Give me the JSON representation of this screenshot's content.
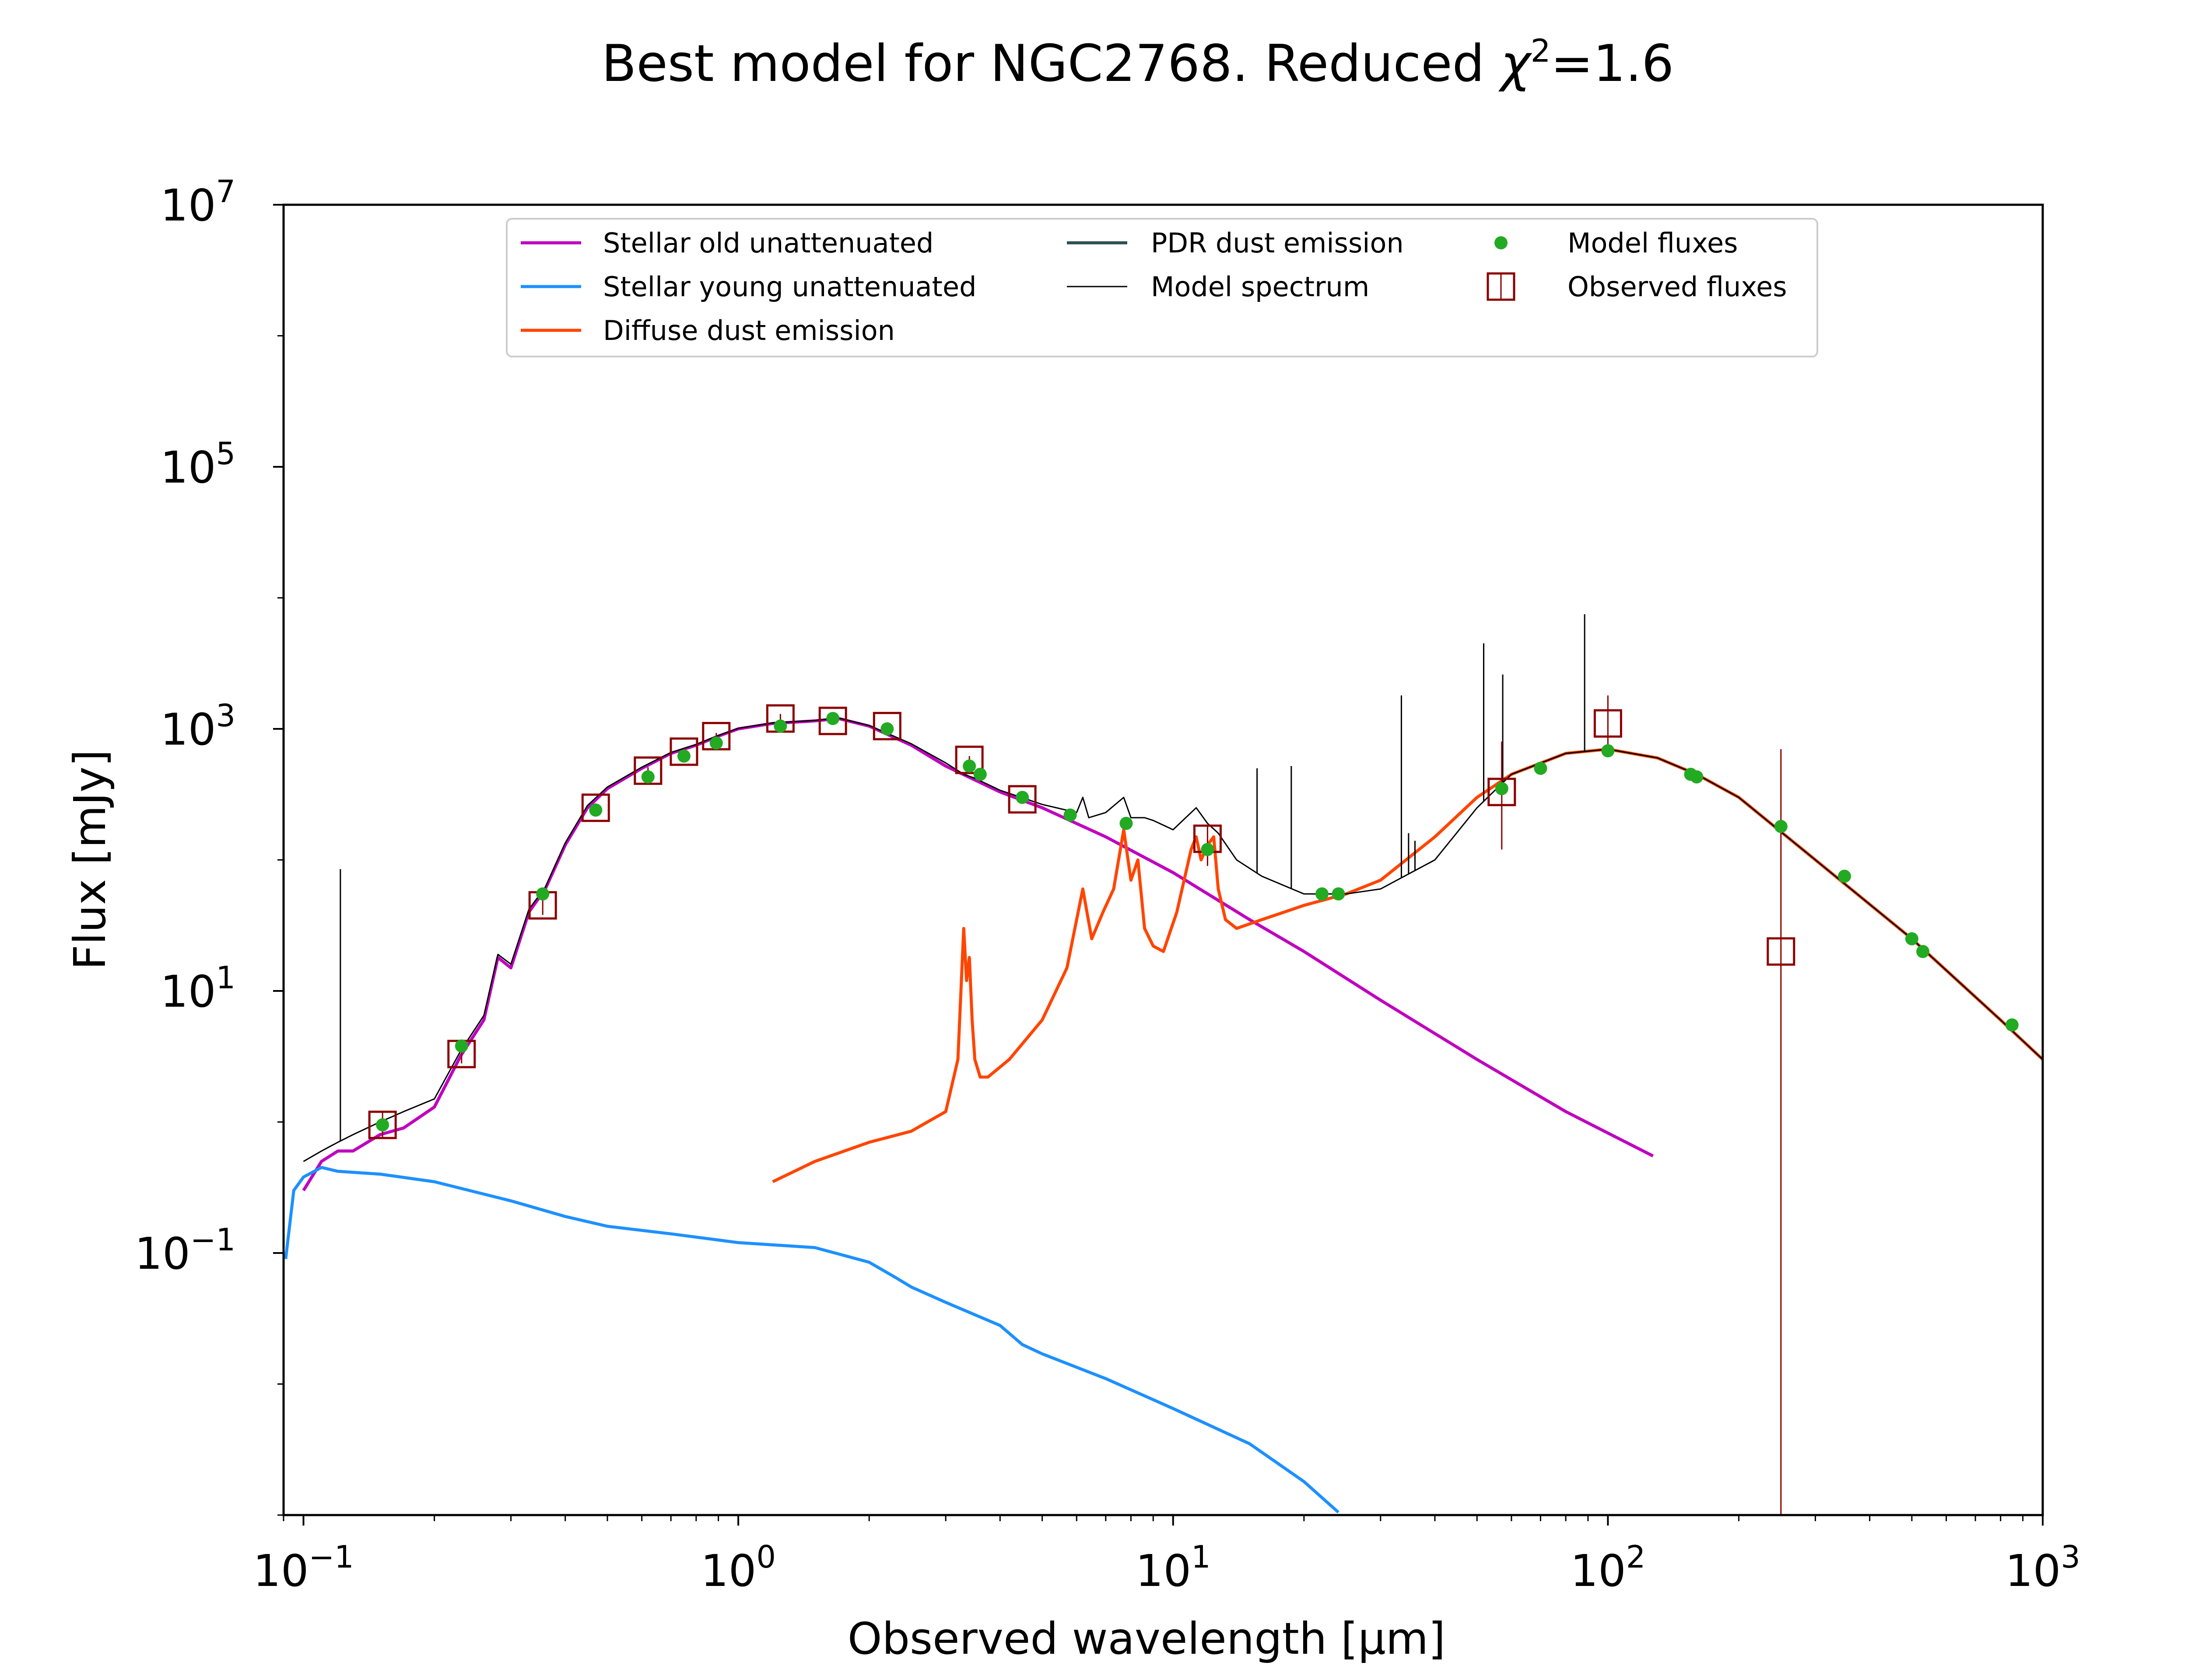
{
  "chart_data": {
    "type": "line",
    "title": "Best model for NGC2768. Reduced χ²=1.6",
    "title_parts": {
      "prefix": "Best model for NGC2768. Reduced ",
      "symbol": "χ",
      "superscript": "2",
      "suffix": "=1.6"
    },
    "xlabel": "Observed wavelength [μm]",
    "ylabel": "Flux [mJy]",
    "x_scale": "log",
    "y_scale": "log",
    "xlim": [
      0.09,
      1000
    ],
    "ylim": [
      0.001,
      10000000
    ],
    "x_ticks": [
      {
        "value": 0.1,
        "base": "10",
        "exp": "−1"
      },
      {
        "value": 1,
        "base": "10",
        "exp": "0"
      },
      {
        "value": 10,
        "base": "10",
        "exp": "1"
      },
      {
        "value": 100,
        "base": "10",
        "exp": "2"
      },
      {
        "value": 1000,
        "base": "10",
        "exp": "3"
      }
    ],
    "y_ticks": [
      {
        "value": 0.1,
        "base": "10",
        "exp": "−1"
      },
      {
        "value": 10,
        "base": "10",
        "exp": "1"
      },
      {
        "value": 1000,
        "base": "10",
        "exp": "3"
      },
      {
        "value": 100000,
        "base": "10",
        "exp": "5"
      },
      {
        "value": 10000000,
        "base": "10",
        "exp": "7"
      }
    ],
    "grid": false,
    "legend_position": "top-center",
    "legend": [
      {
        "label": "Stellar old unattenuated",
        "kind": "line",
        "color": "#bf00bf"
      },
      {
        "label": "Stellar young unattenuated",
        "kind": "line",
        "color": "#1e90ff"
      },
      {
        "label": "Diffuse dust emission",
        "kind": "line",
        "color": "#ff4500"
      },
      {
        "label": "PDR dust emission",
        "kind": "line",
        "color": "#2f4f4f"
      },
      {
        "label": "Model spectrum",
        "kind": "thin-line",
        "color": "#000000"
      },
      {
        "label": "Model fluxes",
        "kind": "dot",
        "color": "#22aa22"
      },
      {
        "label": "Observed fluxes",
        "kind": "square",
        "color": "#8b0000"
      }
    ],
    "series": [
      {
        "name": "Stellar old unattenuated",
        "color": "#bf00bf",
        "x": [
          0.1,
          0.11,
          0.12,
          0.13,
          0.15,
          0.17,
          0.2,
          0.23,
          0.26,
          0.28,
          0.3,
          0.33,
          0.36,
          0.4,
          0.45,
          0.5,
          0.6,
          0.7,
          0.8,
          0.9,
          1.0,
          1.2,
          1.5,
          1.7,
          2.0,
          2.5,
          3.0,
          4.0,
          5.0,
          7.0,
          10,
          15,
          20,
          30,
          50,
          80,
          127
        ],
        "y": [
          0.3,
          0.5,
          0.6,
          0.6,
          0.8,
          0.9,
          1.3,
          3.2,
          6.0,
          18,
          15,
          40,
          60,
          130,
          250,
          350,
          500,
          650,
          750,
          880,
          1000,
          1100,
          1150,
          1200,
          1050,
          750,
          520,
          330,
          250,
          150,
          80,
          35,
          20,
          8.5,
          3.0,
          1.2,
          0.55
        ]
      },
      {
        "name": "Stellar young unattenuated",
        "color": "#1e90ff",
        "x": [
          0.091,
          0.095,
          0.1,
          0.11,
          0.12,
          0.15,
          0.2,
          0.3,
          0.4,
          0.5,
          0.7,
          1.0,
          1.5,
          2.0,
          2.3,
          2.5,
          3.0,
          4.0,
          4.5,
          5.0,
          7.0,
          10,
          15,
          20,
          24
        ],
        "y": [
          0.09,
          0.3,
          0.38,
          0.45,
          0.42,
          0.4,
          0.35,
          0.25,
          0.19,
          0.16,
          0.14,
          0.12,
          0.11,
          0.085,
          0.065,
          0.055,
          0.042,
          0.028,
          0.02,
          0.017,
          0.011,
          0.0065,
          0.0035,
          0.0018,
          0.00105
        ]
      },
      {
        "name": "Diffuse dust emission",
        "color": "#ff4500",
        "x": [
          1.2,
          1.5,
          2.0,
          2.5,
          3.0,
          3.2,
          3.3,
          3.35,
          3.4,
          3.45,
          3.5,
          3.6,
          3.75,
          4.2,
          5.0,
          5.7,
          6.2,
          6.5,
          6.9,
          7.3,
          7.7,
          8.0,
          8.3,
          8.6,
          9.0,
          9.5,
          10.2,
          11.0,
          11.3,
          11.6,
          12.0,
          12.4,
          12.7,
          13.2,
          14,
          16,
          20,
          25,
          30,
          40,
          50,
          60,
          80,
          100,
          130,
          160,
          200,
          300,
          500,
          800,
          1000
        ],
        "y": [
          0.35,
          0.5,
          0.7,
          0.85,
          1.2,
          3,
          30,
          12,
          18,
          6,
          3,
          2.2,
          2.2,
          3,
          6,
          15,
          60,
          25,
          40,
          60,
          170,
          70,
          100,
          30,
          22,
          20,
          40,
          120,
          150,
          100,
          130,
          150,
          60,
          35,
          30,
          35,
          45,
          55,
          70,
          150,
          300,
          450,
          650,
          700,
          600,
          450,
          300,
          100,
          25,
          6,
          3
        ]
      },
      {
        "name": "Model spectrum",
        "color": "#000000",
        "x": [
          0.1,
          0.11,
          0.12,
          0.13,
          0.15,
          0.17,
          0.2,
          0.23,
          0.26,
          0.28,
          0.3,
          0.33,
          0.36,
          0.4,
          0.45,
          0.5,
          0.6,
          0.7,
          0.8,
          0.9,
          1.0,
          1.2,
          1.5,
          1.7,
          2.0,
          2.5,
          3.0,
          3.3,
          3.5,
          4.0,
          5.0,
          6.0,
          6.2,
          6.4,
          7.0,
          7.7,
          8.0,
          8.6,
          9.0,
          10,
          11.3,
          12,
          12.7,
          14,
          16,
          20,
          25,
          30,
          40,
          50,
          60,
          80,
          100,
          130,
          160,
          200,
          300,
          500,
          800,
          1000
        ],
        "y": [
          0.5,
          0.6,
          0.7,
          0.8,
          1.0,
          1.2,
          1.5,
          3.5,
          6.5,
          19,
          16,
          42,
          62,
          135,
          260,
          360,
          510,
          660,
          760,
          890,
          1010,
          1110,
          1160,
          1210,
          1060,
          770,
          550,
          450,
          420,
          340,
          265,
          230,
          300,
          210,
          230,
          300,
          210,
          210,
          200,
          170,
          250,
          190,
          160,
          100,
          75,
          55,
          55,
          60,
          100,
          250,
          450,
          650,
          700,
          600,
          450,
          300,
          100,
          25,
          6,
          3
        ]
      }
    ],
    "emission_lines": [
      {
        "x": 0.1216,
        "y": 85
      },
      {
        "x": 15.6,
        "y": 500
      },
      {
        "x": 18.7,
        "y": 520
      },
      {
        "x": 33.5,
        "y": 1800
      },
      {
        "x": 34.8,
        "y": 160
      },
      {
        "x": 36.0,
        "y": 140
      },
      {
        "x": 51.8,
        "y": 4500
      },
      {
        "x": 57.3,
        "y": 2600
      },
      {
        "x": 88.4,
        "y": 7500
      }
    ],
    "model_fluxes": {
      "name": "Model fluxes",
      "x": [
        0.152,
        0.231,
        0.355,
        0.47,
        0.62,
        0.75,
        0.89,
        1.25,
        1.65,
        2.2,
        3.4,
        3.6,
        4.5,
        5.8,
        7.8,
        12,
        22,
        24,
        57,
        70,
        100,
        155,
        160,
        250,
        350,
        500,
        530,
        850
      ],
      "y": [
        0.95,
        3.8,
        55,
        240,
        430,
        620,
        780,
        1050,
        1200,
        1000,
        520,
        450,
        300,
        220,
        190,
        120,
        55,
        55,
        350,
        500,
        680,
        450,
        430,
        180,
        75,
        25,
        20,
        5.5
      ]
    },
    "observed_fluxes": {
      "name": "Observed fluxes",
      "x": [
        0.152,
        0.231,
        0.355,
        0.47,
        0.62,
        0.75,
        0.89,
        1.25,
        1.65,
        2.2,
        3.4,
        4.5,
        12,
        57,
        100,
        250
      ],
      "y": [
        0.95,
        3.3,
        45,
        250,
        480,
        670,
        880,
        1200,
        1150,
        1050,
        580,
        290,
        145,
        330,
        1100,
        20
      ],
      "err_low": [
        0.75,
        2.8,
        38,
        230,
        450,
        630,
        830,
        1100,
        1080,
        990,
        540,
        270,
        90,
        120,
        650,
        0.001
      ],
      "err_high": [
        1.2,
        3.9,
        55,
        270,
        510,
        710,
        930,
        1300,
        1230,
        1110,
        620,
        310,
        180,
        800,
        1800,
        700
      ]
    },
    "colors": {
      "old": "#bf00bf",
      "young": "#1e90ff",
      "dust": "#ff4500",
      "pdr": "#2f4f4f",
      "spectrum": "#000000",
      "model_flux": "#22aa22",
      "observed": "#8b0000"
    }
  }
}
